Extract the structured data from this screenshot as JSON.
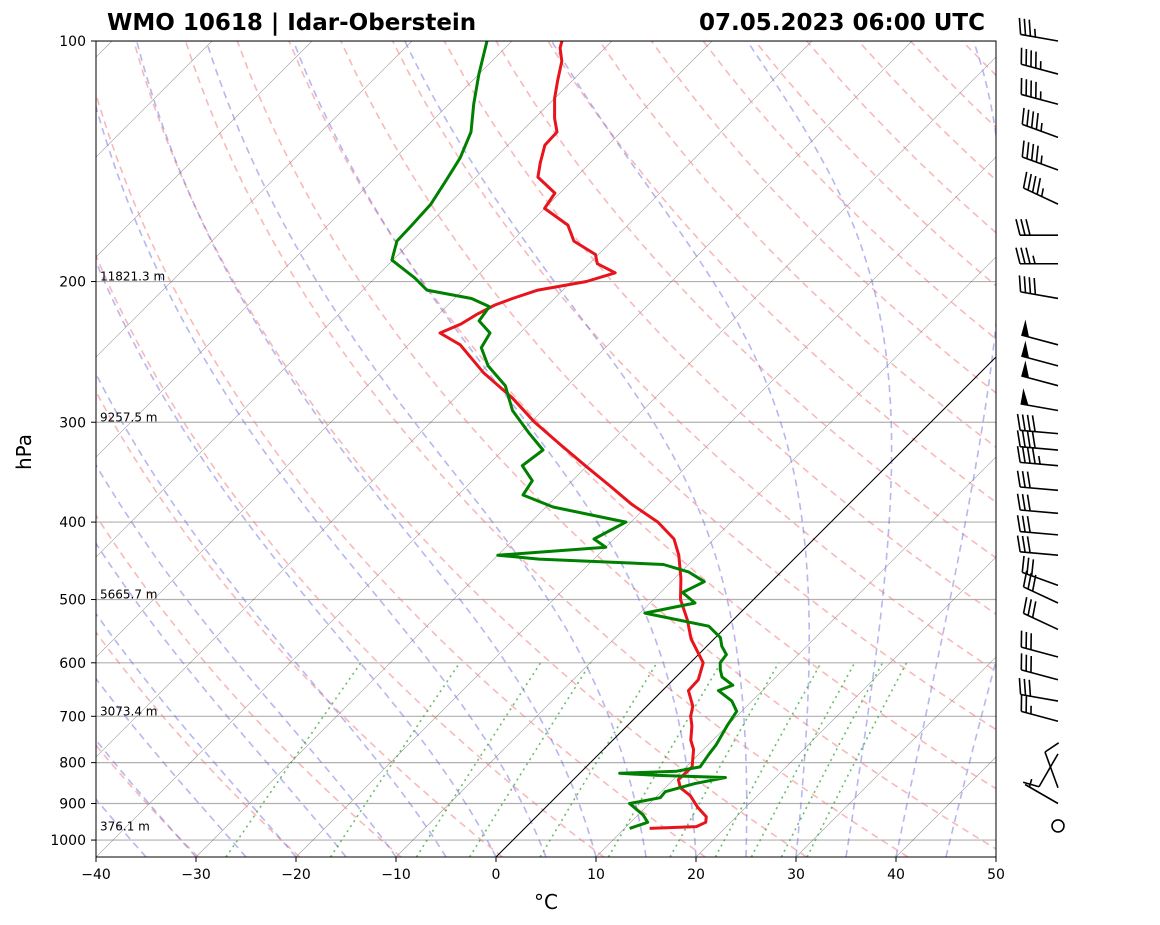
{
  "chart_data": {
    "type": "line",
    "title_left": "WMO 10618 | Idar-Oberstein",
    "title_right": "07.05.2023 06:00 UTC",
    "xlabel": "°C",
    "ylabel": "hPa",
    "xlim": [
      -40,
      50
    ],
    "ylim_hpa": [
      1050,
      100
    ],
    "y_scale": "log",
    "x_ticks": [
      "−40",
      "−30",
      "−20",
      "−10",
      "0",
      "10",
      "20",
      "30",
      "40",
      "50"
    ],
    "x_tick_values": [
      -40,
      -30,
      -20,
      -10,
      0,
      10,
      20,
      30,
      40,
      50
    ],
    "y_ticks": [
      "1000",
      "900",
      "800",
      "700",
      "600",
      "500",
      "400",
      "300",
      "200",
      "100"
    ],
    "y_tick_values": [
      1000,
      900,
      800,
      700,
      600,
      500,
      400,
      300,
      200,
      100
    ],
    "height_labels": [
      {
        "p": 200,
        "text": "11821.3 m"
      },
      {
        "p": 300,
        "text": "9257.5 m"
      },
      {
        "p": 500,
        "text": "5665.7 m"
      },
      {
        "p": 700,
        "text": "3073.4 m"
      },
      {
        "p": 975,
        "text": "376.1 m"
      }
    ],
    "series": [
      {
        "color": "#e8141c",
        "points": [
          [
            967,
            12.5
          ],
          [
            962,
            17.0
          ],
          [
            950,
            17.5
          ],
          [
            935,
            17.0
          ],
          [
            910,
            15.2
          ],
          [
            880,
            13.3
          ],
          [
            860,
            11.5
          ],
          [
            840,
            10.5
          ],
          [
            810,
            10.6
          ],
          [
            770,
            9.0
          ],
          [
            750,
            7.8
          ],
          [
            720,
            6.5
          ],
          [
            700,
            5.4
          ],
          [
            680,
            4.6
          ],
          [
            650,
            2.6
          ],
          [
            630,
            2.5
          ],
          [
            600,
            1.3
          ],
          [
            560,
            -2.3
          ],
          [
            530,
            -4.6
          ],
          [
            500,
            -7.3
          ],
          [
            470,
            -9.4
          ],
          [
            440,
            -11.9
          ],
          [
            420,
            -14.0
          ],
          [
            400,
            -17.3
          ],
          [
            380,
            -21.7
          ],
          [
            360,
            -25.8
          ],
          [
            340,
            -30.2
          ],
          [
            320,
            -34.8
          ],
          [
            300,
            -39.6
          ],
          [
            280,
            -44.2
          ],
          [
            260,
            -49.7
          ],
          [
            240,
            -54.8
          ],
          [
            232,
            -58.0
          ],
          [
            226,
            -56.8
          ],
          [
            220,
            -56.2
          ],
          [
            214,
            -55.3
          ],
          [
            210,
            -54.2
          ],
          [
            205,
            -52.5
          ],
          [
            200,
            -48.5
          ],
          [
            195,
            -46.5
          ],
          [
            190,
            -49.2
          ],
          [
            185,
            -50.3
          ],
          [
            178,
            -53.8
          ],
          [
            170,
            -56.0
          ],
          [
            162,
            -60.0
          ],
          [
            155,
            -60.5
          ],
          [
            148,
            -63.8
          ],
          [
            142,
            -65.0
          ],
          [
            135,
            -66.3
          ],
          [
            130,
            -66.4
          ],
          [
            125,
            -68.0
          ],
          [
            118,
            -70.0
          ],
          [
            112,
            -71.5
          ],
          [
            106,
            -73.0
          ],
          [
            102,
            -74.5
          ],
          [
            100,
            -75.0
          ]
        ]
      },
      {
        "color": "#008000",
        "points": [
          [
            967,
            10.5
          ],
          [
            950,
            11.7
          ],
          [
            930,
            10.5
          ],
          [
            900,
            8.0
          ],
          [
            885,
            10.5
          ],
          [
            870,
            10.4
          ],
          [
            850,
            12.5
          ],
          [
            835,
            15.0
          ],
          [
            830,
            8.0
          ],
          [
            825,
            4.0
          ],
          [
            820,
            9.5
          ],
          [
            810,
            11.4
          ],
          [
            780,
            11.0
          ],
          [
            760,
            10.8
          ],
          [
            720,
            10.0
          ],
          [
            690,
            9.5
          ],
          [
            670,
            8.0
          ],
          [
            650,
            5.6
          ],
          [
            640,
            6.5
          ],
          [
            625,
            4.6
          ],
          [
            612,
            3.7
          ],
          [
            600,
            3.0
          ],
          [
            586,
            2.8
          ],
          [
            572,
            1.5
          ],
          [
            558,
            0.5
          ],
          [
            540,
            -1.8
          ],
          [
            520,
            -9.5
          ],
          [
            505,
            -5.5
          ],
          [
            490,
            -7.8
          ],
          [
            475,
            -6.7
          ],
          [
            462,
            -9.2
          ],
          [
            452,
            -12.5
          ],
          [
            445,
            -25.5
          ],
          [
            440,
            -30.0
          ],
          [
            430,
            -20.0
          ],
          [
            420,
            -22.0
          ],
          [
            400,
            -20.5
          ],
          [
            383,
            -29.3
          ],
          [
            370,
            -33.5
          ],
          [
            355,
            -34.0
          ],
          [
            340,
            -36.5
          ],
          [
            325,
            -36.0
          ],
          [
            310,
            -39.0
          ],
          [
            290,
            -43.0
          ],
          [
            270,
            -46.2
          ],
          [
            255,
            -49.9
          ],
          [
            242,
            -52.4
          ],
          [
            232,
            -53.0
          ],
          [
            224,
            -55.3
          ],
          [
            215,
            -55.7
          ],
          [
            210,
            -58.3
          ],
          [
            205,
            -63.6
          ],
          [
            198,
            -66.0
          ],
          [
            188,
            -70.1
          ],
          [
            178,
            -71.5
          ],
          [
            170,
            -71.6
          ],
          [
            160,
            -71.8
          ],
          [
            150,
            -72.6
          ],
          [
            140,
            -73.5
          ],
          [
            130,
            -75.0
          ],
          [
            120,
            -77.5
          ],
          [
            110,
            -80.0
          ],
          [
            100,
            -82.5
          ]
        ]
      }
    ],
    "wind_barbs": [
      {
        "p": 100,
        "dir": 280,
        "kt": 35
      },
      {
        "p": 110,
        "dir": 285,
        "kt": 45
      },
      {
        "p": 120,
        "dir": 285,
        "kt": 45
      },
      {
        "p": 132,
        "dir": 290,
        "kt": 45
      },
      {
        "p": 145,
        "dir": 290,
        "kt": 45
      },
      {
        "p": 160,
        "dir": 295,
        "kt": 45
      },
      {
        "p": 175,
        "dir": 270,
        "kt": 30
      },
      {
        "p": 190,
        "dir": 270,
        "kt": 35
      },
      {
        "p": 210,
        "dir": 280,
        "kt": 40
      },
      {
        "p": 240,
        "dir": 285,
        "kt": 50
      },
      {
        "p": 255,
        "dir": 285,
        "kt": 50
      },
      {
        "p": 270,
        "dir": 285,
        "kt": 50
      },
      {
        "p": 290,
        "dir": 280,
        "kt": 50
      },
      {
        "p": 310,
        "dir": 275,
        "kt": 40
      },
      {
        "p": 325,
        "dir": 275,
        "kt": 40
      },
      {
        "p": 340,
        "dir": 275,
        "kt": 45
      },
      {
        "p": 365,
        "dir": 275,
        "kt": 30
      },
      {
        "p": 390,
        "dir": 275,
        "kt": 30
      },
      {
        "p": 415,
        "dir": 275,
        "kt": 30
      },
      {
        "p": 440,
        "dir": 275,
        "kt": 30
      },
      {
        "p": 480,
        "dir": 290,
        "kt": 30
      },
      {
        "p": 505,
        "dir": 295,
        "kt": 30
      },
      {
        "p": 545,
        "dir": 295,
        "kt": 30
      },
      {
        "p": 590,
        "dir": 285,
        "kt": 30
      },
      {
        "p": 630,
        "dir": 285,
        "kt": 30
      },
      {
        "p": 670,
        "dir": 280,
        "kt": 30
      },
      {
        "p": 710,
        "dir": 285,
        "kt": 25
      },
      {
        "p": 780,
        "dir": 210,
        "kt": 10
      },
      {
        "p": 860,
        "dir": 340,
        "kt": 10
      },
      {
        "p": 900,
        "dir": 300,
        "kt": 5
      },
      {
        "p": 960,
        "dir": 0,
        "kt": 0
      }
    ]
  }
}
